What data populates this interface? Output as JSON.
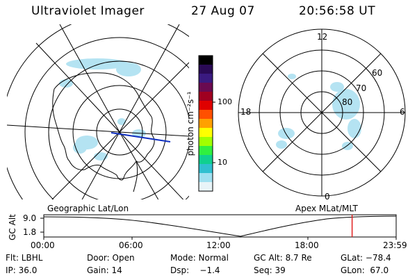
{
  "header": {
    "title": "Ultraviolet Imager",
    "date": "27 Aug 07",
    "time": "20:56:58 UT"
  },
  "left_map": {
    "label": "Geographic Lat/Lon"
  },
  "right_map": {
    "label": "Apex MLat/MLT",
    "mlt_labels": {
      "top": "12",
      "left": "18",
      "right": "6",
      "bottom": "0"
    },
    "lat_labels": [
      "60",
      "70",
      "80"
    ]
  },
  "colorbar": {
    "unit_label": "photon cm⁻²s⁻¹",
    "ticks": [
      "100",
      "10"
    ],
    "colors": [
      "#000000",
      "#2a0a55",
      "#3a1a80",
      "#6a0a50",
      "#a00020",
      "#e00000",
      "#ff5000",
      "#ffa000",
      "#ffff00",
      "#a0ff00",
      "#30f040",
      "#10d090",
      "#30c0d0",
      "#a0e0f0",
      "#e8f4f8"
    ]
  },
  "timeline": {
    "y_axis_label": "GC Alt",
    "y_ticks": [
      "9.0",
      "1.8"
    ],
    "x_ticks": [
      "00:00",
      "06:00",
      "12:00",
      "18:00",
      "23:59"
    ],
    "current_time_fraction": 0.875,
    "marker_color": "#e02020"
  },
  "info": {
    "row1": {
      "flt": "Flt: LBHL",
      "door": "Door: Open",
      "mode": "Mode: Normal",
      "gcalt": "GC Alt: 8.7 Re",
      "glat": "GLat: −78.4"
    },
    "row2": {
      "ip": "IP: 36.0",
      "gain": "Gain: 14",
      "dsp": "Dsp:    −1.4",
      "seq": "Seq: 39",
      "glon": "GLon:  67.0"
    }
  }
}
